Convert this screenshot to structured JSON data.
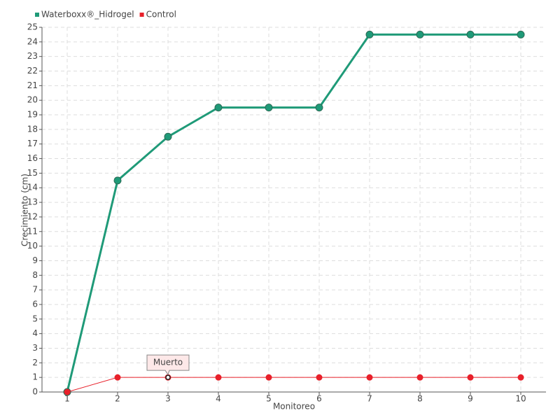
{
  "chart_data": {
    "type": "line",
    "x": [
      1,
      2,
      3,
      4,
      5,
      6,
      7,
      8,
      9,
      10
    ],
    "series": [
      {
        "name": "Waterboxx®_Hidrogel",
        "color": "#1f9a78",
        "values": [
          0,
          14.5,
          17.5,
          19.5,
          19.5,
          19.5,
          24.5,
          24.5,
          24.5,
          24.5
        ]
      },
      {
        "name": "Control",
        "color": "#e8202a",
        "values": [
          0,
          1,
          1,
          1,
          1,
          1,
          1,
          1,
          1,
          1
        ]
      }
    ],
    "xlabel": "Monitoreo",
    "ylabel": "Crecimiento (cm)",
    "xlim": [
      0.5,
      10.5
    ],
    "xticks": [
      1,
      2,
      3,
      4,
      5,
      6,
      7,
      8,
      9,
      10
    ],
    "ylim": [
      0,
      25
    ],
    "yticks": [
      0,
      1,
      2,
      3,
      4,
      5,
      6,
      7,
      8,
      9,
      10,
      11,
      12,
      13,
      14,
      15,
      16,
      17,
      18,
      19,
      20,
      21,
      22,
      23,
      24,
      25
    ],
    "grid": true,
    "legend": "top-left",
    "annotations": [
      {
        "text": "Muerto",
        "x": 3,
        "y": 1
      }
    ]
  }
}
